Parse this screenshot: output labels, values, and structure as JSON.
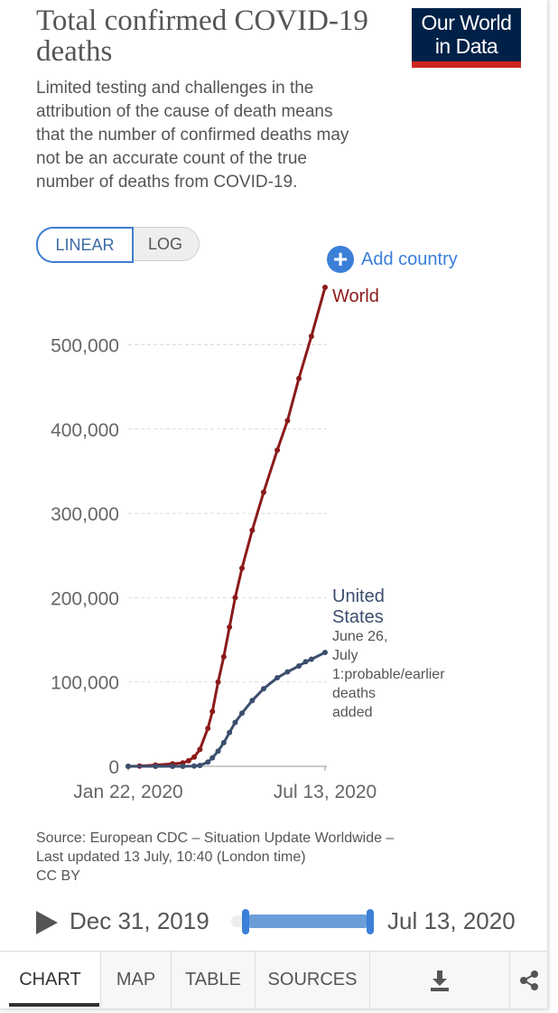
{
  "header": {
    "title": "Total confirmed COVID-19 deaths",
    "subtitle": "Limited testing and challenges in the attribution of the cause of death means that the number of confirmed deaths may not be an accurate count of the true number of deaths from COVID-19."
  },
  "logo": {
    "line1": "Our World",
    "line2": "in Data",
    "bg_color": "#002147",
    "bar_color": "#ce261e"
  },
  "scale_toggle": {
    "linear": "LINEAR",
    "log": "LOG",
    "selected": "LINEAR"
  },
  "add_country": {
    "label": "Add country",
    "icon": "plus-circle-icon"
  },
  "chart_data": {
    "type": "line",
    "y_scale": "linear",
    "ylim": [
      0,
      570000
    ],
    "xlim": [
      "2020-01-22",
      "2020-07-13"
    ],
    "y_ticks": [
      0,
      100000,
      200000,
      300000,
      400000,
      500000
    ],
    "y_tick_labels": [
      "0",
      "100,000",
      "200,000",
      "300,000",
      "400,000",
      "500,000"
    ],
    "x_tick_labels": [
      "Jan 22, 2020",
      "Jul 13, 2020"
    ],
    "grid": "horizontal dashed",
    "series": [
      {
        "name": "World",
        "label": "World",
        "color": "#8b1a1a",
        "points": [
          [
            "2020-01-22",
            17
          ],
          [
            "2020-02-01",
            259
          ],
          [
            "2020-02-15",
            1526
          ],
          [
            "2020-03-01",
            3000
          ],
          [
            "2020-03-10",
            4000
          ],
          [
            "2020-03-15",
            6500
          ],
          [
            "2020-03-20",
            11000
          ],
          [
            "2020-03-25",
            20000
          ],
          [
            "2020-04-01",
            45000
          ],
          [
            "2020-04-05",
            65000
          ],
          [
            "2020-04-10",
            100000
          ],
          [
            "2020-04-15",
            130000
          ],
          [
            "2020-04-20",
            165000
          ],
          [
            "2020-04-25",
            200000
          ],
          [
            "2020-05-01",
            235000
          ],
          [
            "2020-05-10",
            280000
          ],
          [
            "2020-05-20",
            325000
          ],
          [
            "2020-06-01",
            375000
          ],
          [
            "2020-06-10",
            410000
          ],
          [
            "2020-06-20",
            460000
          ],
          [
            "2020-07-01",
            510000
          ],
          [
            "2020-07-13",
            568000
          ]
        ]
      },
      {
        "name": "United States",
        "label": [
          "United",
          "States"
        ],
        "annotation": [
          "June 26,",
          "July",
          "1:probable/earlier",
          "deaths",
          "added"
        ],
        "color": "#3c4e6e",
        "points": [
          [
            "2020-01-22",
            0
          ],
          [
            "2020-02-15",
            0
          ],
          [
            "2020-03-01",
            1
          ],
          [
            "2020-03-10",
            30
          ],
          [
            "2020-03-20",
            250
          ],
          [
            "2020-03-25",
            1000
          ],
          [
            "2020-04-01",
            5000
          ],
          [
            "2020-04-05",
            10000
          ],
          [
            "2020-04-10",
            18000
          ],
          [
            "2020-04-15",
            28000
          ],
          [
            "2020-04-20",
            40000
          ],
          [
            "2020-04-25",
            52000
          ],
          [
            "2020-05-01",
            63000
          ],
          [
            "2020-05-10",
            78000
          ],
          [
            "2020-05-20",
            92000
          ],
          [
            "2020-06-01",
            105000
          ],
          [
            "2020-06-10",
            112000
          ],
          [
            "2020-06-20",
            119000
          ],
          [
            "2020-06-26",
            124000
          ],
          [
            "2020-07-01",
            127000
          ],
          [
            "2020-07-13",
            135000
          ]
        ]
      }
    ]
  },
  "source": {
    "line1": "Source: European CDC – Situation Update Worldwide –",
    "line2": "Last updated 13 July, 10:40 (London time)",
    "line3": "CC BY"
  },
  "timeline": {
    "start_date": "Dec 31, 2019",
    "end_date": "Jul 13, 2020",
    "play_icon": "play-icon",
    "accent": "#3b7fd8"
  },
  "tabs": {
    "chart": "CHART",
    "map": "MAP",
    "table": "TABLE",
    "sources": "SOURCES",
    "download_icon": "download-icon",
    "share_icon": "share-icon",
    "active": "CHART"
  }
}
